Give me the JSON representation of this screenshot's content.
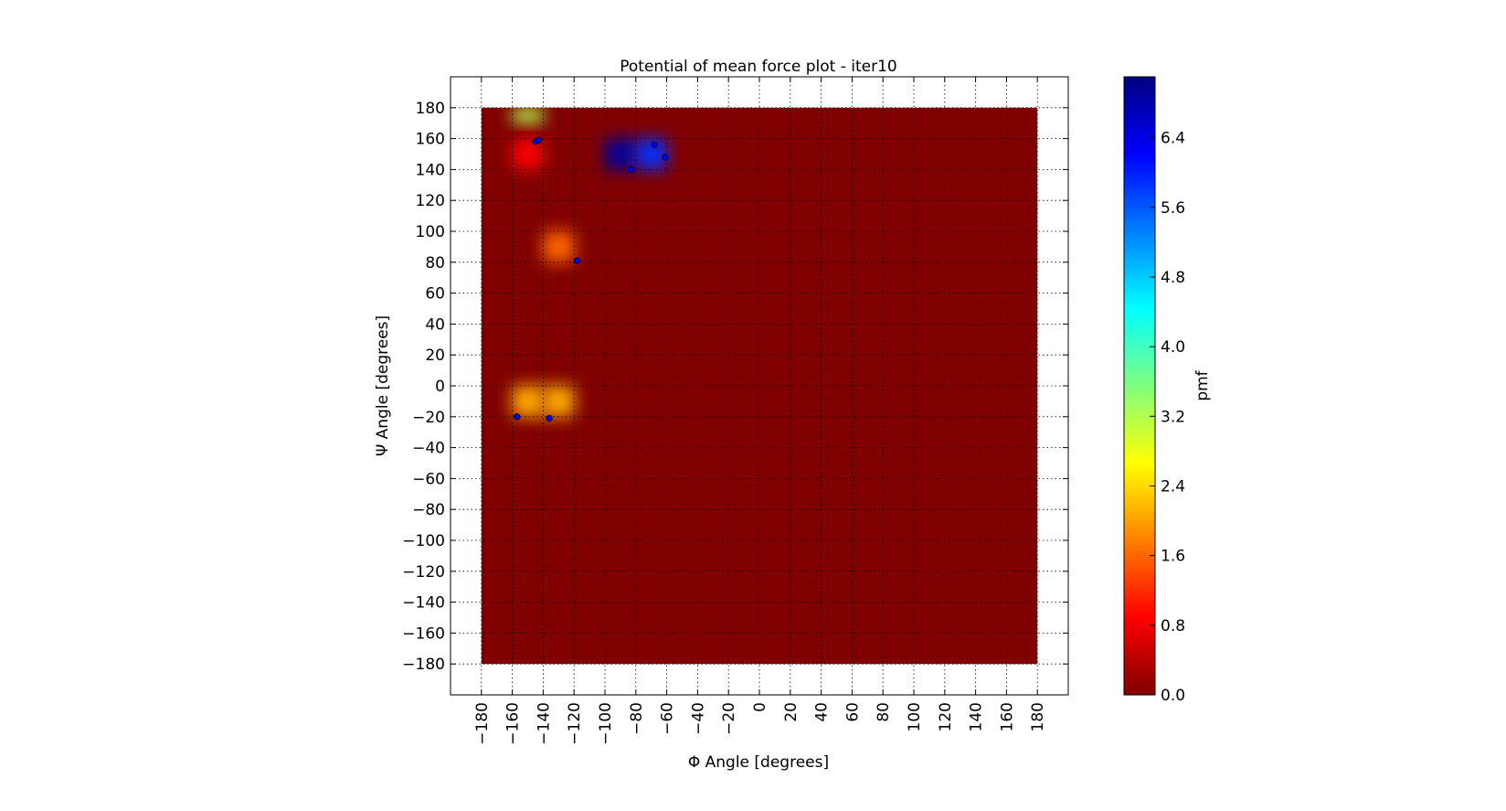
{
  "chart_data": {
    "type": "heatmap",
    "title": "Potential of mean force plot - iter10",
    "xlabel": "Φ Angle [degrees]",
    "ylabel": "Ψ Angle [degrees]",
    "xlim": [
      -200,
      200
    ],
    "ylim": [
      -200,
      200
    ],
    "data_extent": {
      "x": [
        -180,
        180
      ],
      "y": [
        -180,
        180
      ]
    },
    "x_ticks": [
      -180,
      -160,
      -140,
      -120,
      -100,
      -80,
      -60,
      -40,
      -20,
      0,
      20,
      40,
      60,
      80,
      100,
      120,
      140,
      160,
      180
    ],
    "y_ticks": [
      -180,
      -160,
      -140,
      -120,
      -100,
      -80,
      -60,
      -40,
      -20,
      0,
      20,
      40,
      60,
      80,
      100,
      120,
      140,
      160,
      180
    ],
    "grid": true,
    "colormap": "jet",
    "background_value": 0.0,
    "colorbar": {
      "label": "pmf",
      "min": 0.0,
      "max": 7.1,
      "ticks": [
        "0.0",
        "0.8",
        "1.6",
        "2.4",
        "3.2",
        "4.0",
        "4.8",
        "5.6",
        "6.4"
      ]
    },
    "pmf_regions": [
      {
        "x": [
          -160,
          -140
        ],
        "y": [
          170,
          180
        ],
        "pmf": 3.2
      },
      {
        "x": [
          -160,
          -140
        ],
        "y": [
          140,
          160
        ],
        "pmf": 0.9
      },
      {
        "x": [
          -100,
          -80
        ],
        "y": [
          140,
          160
        ],
        "pmf": 6.9
      },
      {
        "x": [
          -80,
          -60
        ],
        "y": [
          140,
          160
        ],
        "pmf": 5.9
      },
      {
        "x": [
          -140,
          -120
        ],
        "y": [
          80,
          100
        ],
        "pmf": 1.6
      },
      {
        "x": [
          -160,
          -140
        ],
        "y": [
          -20,
          0
        ],
        "pmf": 2.1
      },
      {
        "x": [
          -140,
          -120
        ],
        "y": [
          -20,
          0
        ],
        "pmf": 2.1
      }
    ],
    "points": [
      {
        "x": -145,
        "y": 158
      },
      {
        "x": -143,
        "y": 159
      },
      {
        "x": -68,
        "y": 156
      },
      {
        "x": -61,
        "y": 148
      },
      {
        "x": -83,
        "y": 140
      },
      {
        "x": -118,
        "y": 81
      },
      {
        "x": -157,
        "y": -20
      },
      {
        "x": -136,
        "y": -21
      }
    ],
    "point_color": "#0000ff"
  }
}
